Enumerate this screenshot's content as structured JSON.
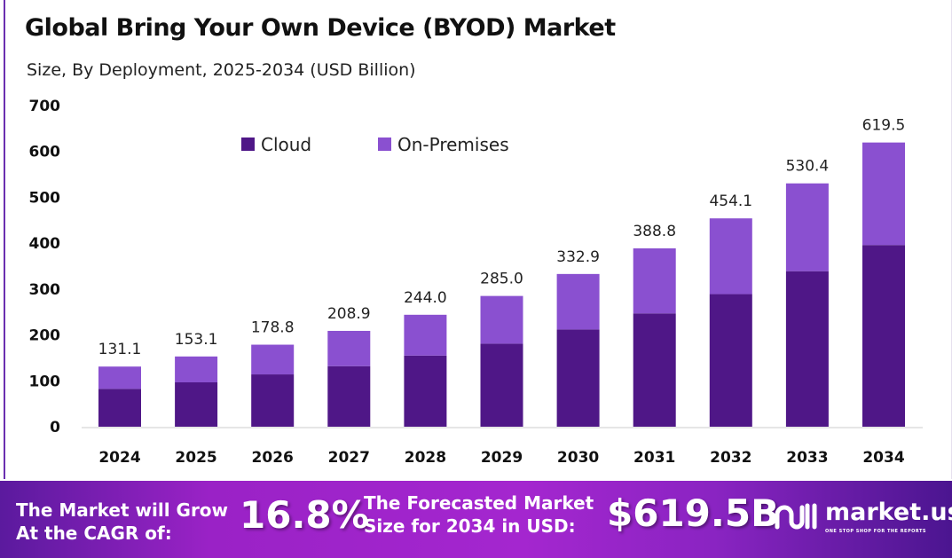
{
  "chart_data": {
    "type": "bar",
    "stacked": true,
    "title": "Global Bring Your Own Device (BYOD) Market",
    "subtitle": "Size, By Deployment, 2025-2034 (USD Billion)",
    "categories": [
      "2024",
      "2025",
      "2026",
      "2027",
      "2028",
      "2029",
      "2030",
      "2031",
      "2032",
      "2033",
      "2034"
    ],
    "series": [
      {
        "name": "Cloud",
        "color": "#4f1787",
        "values": [
          82.6,
          96.7,
          114,
          132,
          155,
          181,
          212,
          247,
          289,
          339,
          396
        ]
      },
      {
        "name": "On-Premises",
        "color": "#8a50d0",
        "values": [
          48.5,
          56.4,
          64.8,
          76.9,
          89,
          104,
          120.9,
          141.8,
          165.1,
          191.4,
          223.5
        ]
      }
    ],
    "totals": [
      "131.1",
      "153.1",
      "178.8",
      "208.9",
      "244.0",
      "285.0",
      "332.9",
      "388.8",
      "454.1",
      "530.4",
      "619.5"
    ],
    "yticks": [
      "0",
      "100",
      "200",
      "300",
      "400",
      "500",
      "600",
      "700"
    ],
    "ylim": [
      0,
      700
    ],
    "grid": false,
    "legend": "top"
  },
  "banner": {
    "cagr_label": "The Market will Grow At the CAGR of:",
    "cagr_value": "16.8%",
    "forecast_label": "The Forecasted Market Size for 2034 in USD:",
    "forecast_value": "$619.5B",
    "logo_name": "market.us",
    "logo_tagline": "ONE STOP SHOP FOR THE REPORTS"
  }
}
